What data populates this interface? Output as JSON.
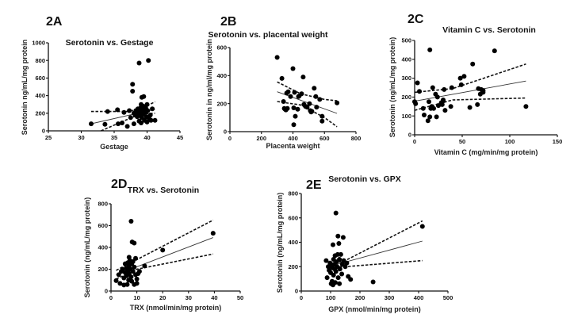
{
  "chart_data": [
    {
      "id": "2A",
      "type": "scatter",
      "panel_label": "2A",
      "title": "Serotonin vs. Gestage",
      "xlabel": "Gestage",
      "ylabel": "Serotonin ng/mL/mg protein",
      "xlim": [
        25,
        45
      ],
      "ylim": [
        0,
        1000
      ],
      "xticks": [
        25,
        30,
        35,
        40,
        45
      ],
      "yticks": [
        0,
        200,
        400,
        600,
        800,
        1000
      ],
      "grid": false,
      "points": [
        [
          31.5,
          80
        ],
        [
          33.6,
          75
        ],
        [
          34.0,
          220
        ],
        [
          35.5,
          240
        ],
        [
          35.6,
          80
        ],
        [
          36.2,
          90
        ],
        [
          36.5,
          210
        ],
        [
          37.0,
          50
        ],
        [
          37.3,
          230
        ],
        [
          37.5,
          150
        ],
        [
          37.8,
          530
        ],
        [
          37.8,
          450
        ],
        [
          38.0,
          80
        ],
        [
          38.0,
          200
        ],
        [
          38.2,
          180
        ],
        [
          38.3,
          230
        ],
        [
          38.5,
          160
        ],
        [
          38.6,
          250
        ],
        [
          38.7,
          200
        ],
        [
          38.8,
          110
        ],
        [
          38.8,
          770
        ],
        [
          38.9,
          220
        ],
        [
          39.0,
          180
        ],
        [
          39.0,
          260
        ],
        [
          39.1,
          90
        ],
        [
          39.1,
          300
        ],
        [
          39.2,
          380
        ],
        [
          39.2,
          150
        ],
        [
          39.3,
          230
        ],
        [
          39.4,
          280
        ],
        [
          39.4,
          190
        ],
        [
          39.5,
          390
        ],
        [
          39.5,
          240
        ],
        [
          39.6,
          120
        ],
        [
          39.7,
          210
        ],
        [
          39.8,
          260
        ],
        [
          39.9,
          160
        ],
        [
          40.0,
          300
        ],
        [
          40.0,
          100
        ],
        [
          40.1,
          230
        ],
        [
          40.2,
          800
        ],
        [
          40.3,
          140
        ],
        [
          40.5,
          180
        ],
        [
          40.6,
          120
        ],
        [
          40.8,
          250
        ],
        [
          41.2,
          120
        ]
      ],
      "fit_line": [
        [
          31.5,
          80
        ],
        [
          41.2,
          245
        ]
      ],
      "ci_upper": [
        [
          31.5,
          220
        ],
        [
          37.0,
          220
        ],
        [
          39.0,
          250
        ],
        [
          41.2,
          330
        ]
      ],
      "ci_lower": [
        [
          33.0,
          0
        ],
        [
          37.0,
          130
        ],
        [
          39.0,
          190
        ],
        [
          41.2,
          200
        ]
      ]
    },
    {
      "id": "2B",
      "type": "scatter",
      "panel_label": "2B",
      "title": "Serotonin vs. placental weight",
      "xlabel": "Placenta weight",
      "ylabel": "Serotonin in ng/ml/mg protein",
      "xlim": [
        0,
        800
      ],
      "ylim": [
        0,
        600
      ],
      "xticks": [
        0,
        200,
        400,
        600,
        800
      ],
      "yticks": [
        0,
        200,
        400,
        600
      ],
      "grid": false,
      "points": [
        [
          300,
          530
        ],
        [
          330,
          380
        ],
        [
          340,
          215
        ],
        [
          345,
          165
        ],
        [
          350,
          160
        ],
        [
          355,
          155
        ],
        [
          360,
          275
        ],
        [
          365,
          165
        ],
        [
          370,
          285
        ],
        [
          385,
          250
        ],
        [
          400,
          450
        ],
        [
          405,
          170
        ],
        [
          405,
          50
        ],
        [
          410,
          280
        ],
        [
          415,
          110
        ],
        [
          430,
          160
        ],
        [
          435,
          250
        ],
        [
          440,
          255
        ],
        [
          455,
          270
        ],
        [
          465,
          390
        ],
        [
          470,
          195
        ],
        [
          480,
          180
        ],
        [
          490,
          175
        ],
        [
          505,
          200
        ],
        [
          510,
          150
        ],
        [
          515,
          140
        ],
        [
          520,
          145
        ],
        [
          535,
          310
        ],
        [
          545,
          250
        ],
        [
          550,
          175
        ],
        [
          570,
          230
        ],
        [
          585,
          110
        ],
        [
          585,
          75
        ],
        [
          680,
          205
        ]
      ],
      "fit_line": [
        [
          300,
          285
        ],
        [
          680,
          130
        ]
      ],
      "ci_upper": [
        [
          300,
          355
        ],
        [
          450,
          270
        ],
        [
          600,
          230
        ],
        [
          680,
          220
        ]
      ],
      "ci_lower": [
        [
          300,
          215
        ],
        [
          450,
          190
        ],
        [
          600,
          100
        ],
        [
          680,
          35
        ]
      ]
    },
    {
      "id": "2C",
      "type": "scatter",
      "panel_label": "2C",
      "title": "Vitamin C vs. Serotonin",
      "xlabel": "Vitamin C (mg/min/mg protein)",
      "ylabel": "Serotonin (ng/mL/mg protein)",
      "xlim": [
        0,
        150
      ],
      "ylim": [
        0,
        500
      ],
      "xticks": [
        0,
        50,
        100,
        150
      ],
      "yticks": [
        0,
        100,
        200,
        300,
        400,
        500
      ],
      "grid": false,
      "points": [
        [
          0,
          175
        ],
        [
          1,
          165
        ],
        [
          3,
          275
        ],
        [
          5,
          230
        ],
        [
          9,
          140
        ],
        [
          10,
          105
        ],
        [
          14,
          75
        ],
        [
          15,
          175
        ],
        [
          16,
          450
        ],
        [
          16,
          95
        ],
        [
          17,
          140
        ],
        [
          18,
          150
        ],
        [
          19,
          250
        ],
        [
          20,
          140
        ],
        [
          22,
          215
        ],
        [
          23,
          95
        ],
        [
          24,
          200
        ],
        [
          25,
          155
        ],
        [
          28,
          170
        ],
        [
          29,
          160
        ],
        [
          30,
          185
        ],
        [
          30,
          180
        ],
        [
          31,
          240
        ],
        [
          32,
          130
        ],
        [
          38,
          150
        ],
        [
          39,
          250
        ],
        [
          48,
          300
        ],
        [
          49,
          265
        ],
        [
          52,
          310
        ],
        [
          58,
          145
        ],
        [
          61,
          375
        ],
        [
          66,
          160
        ],
        [
          67,
          245
        ],
        [
          69,
          215
        ],
        [
          70,
          240
        ],
        [
          72,
          225
        ],
        [
          72,
          235
        ],
        [
          84,
          445
        ],
        [
          117,
          150
        ]
      ],
      "fit_line": [
        [
          0,
          178
        ],
        [
          117,
          285
        ]
      ],
      "ci_upper": [
        [
          0,
          225
        ],
        [
          40,
          245
        ],
        [
          117,
          375
        ]
      ],
      "ci_lower": [
        [
          0,
          130
        ],
        [
          40,
          185
        ],
        [
          117,
          195
        ]
      ]
    },
    {
      "id": "2D",
      "type": "scatter",
      "panel_label": "2D",
      "title": "TRX vs. Serotonin",
      "xlabel": "TRX (nmol/min/mg protein)",
      "ylabel": "Serotonin (ng/mL/mg protein)",
      "xlim": [
        0,
        50
      ],
      "ylim": [
        0,
        800
      ],
      "xticks": [
        0,
        10,
        20,
        30,
        40,
        50
      ],
      "yticks": [
        0,
        200,
        400,
        600,
        800
      ],
      "grid": false,
      "points": [
        [
          2,
          95
        ],
        [
          3,
          150
        ],
        [
          3.5,
          70
        ],
        [
          4,
          180
        ],
        [
          4.5,
          200
        ],
        [
          5,
          55
        ],
        [
          5,
          120
        ],
        [
          5.5,
          250
        ],
        [
          5.5,
          170
        ],
        [
          6,
          210
        ],
        [
          6,
          140
        ],
        [
          6.3,
          60
        ],
        [
          6.5,
          260
        ],
        [
          6.5,
          190
        ],
        [
          6.8,
          100
        ],
        [
          7,
          310
        ],
        [
          7,
          230
        ],
        [
          7,
          160
        ],
        [
          7.3,
          280
        ],
        [
          7.5,
          200
        ],
        [
          7.8,
          640
        ],
        [
          7.8,
          130
        ],
        [
          8,
          250
        ],
        [
          8,
          90
        ],
        [
          8.2,
          450
        ],
        [
          8.5,
          180
        ],
        [
          8.5,
          270
        ],
        [
          9,
          440
        ],
        [
          9,
          220
        ],
        [
          9,
          60
        ],
        [
          9.5,
          300
        ],
        [
          9.5,
          150
        ],
        [
          10,
          110
        ],
        [
          10,
          70
        ],
        [
          10.5,
          160
        ],
        [
          11,
          180
        ],
        [
          13,
          230
        ],
        [
          20,
          375
        ],
        [
          39.5,
          530
        ]
      ],
      "fit_line": [
        [
          2,
          150
        ],
        [
          39.5,
          490
        ]
      ],
      "ci_upper": [
        [
          2,
          190
        ],
        [
          39.5,
          650
        ]
      ],
      "ci_lower": [
        [
          2,
          110
        ],
        [
          10,
          200
        ],
        [
          39.5,
          340
        ]
      ]
    },
    {
      "id": "2E",
      "type": "scatter",
      "panel_label": "2E",
      "title": "Serotonin vs. GPX",
      "xlabel": "GPX (nmol/min/mg protein)",
      "ylabel": "Serotonin (ng/mL/mg protein)",
      "xlim": [
        0,
        500
      ],
      "ylim": [
        0,
        800
      ],
      "xticks": [
        0,
        100,
        200,
        300,
        400,
        500
      ],
      "yticks": [
        0,
        200,
        400,
        600,
        800
      ],
      "grid": false,
      "points": [
        [
          85,
          250
        ],
        [
          88,
          110
        ],
        [
          92,
          200
        ],
        [
          95,
          170
        ],
        [
          98,
          230
        ],
        [
          100,
          150
        ],
        [
          102,
          60
        ],
        [
          104,
          210
        ],
        [
          105,
          80
        ],
        [
          106,
          190
        ],
        [
          108,
          50
        ],
        [
          108,
          380
        ],
        [
          110,
          260
        ],
        [
          110,
          130
        ],
        [
          112,
          220
        ],
        [
          114,
          180
        ],
        [
          115,
          290
        ],
        [
          116,
          70
        ],
        [
          118,
          640
        ],
        [
          118,
          160
        ],
        [
          120,
          240
        ],
        [
          122,
          200
        ],
        [
          124,
          300
        ],
        [
          125,
          450
        ],
        [
          126,
          110
        ],
        [
          128,
          390
        ],
        [
          130,
          260
        ],
        [
          130,
          60
        ],
        [
          132,
          180
        ],
        [
          135,
          300
        ],
        [
          138,
          140
        ],
        [
          140,
          220
        ],
        [
          143,
          440
        ],
        [
          145,
          250
        ],
        [
          150,
          200
        ],
        [
          155,
          230
        ],
        [
          160,
          120
        ],
        [
          168,
          95
        ],
        [
          245,
          75
        ],
        [
          413,
          530
        ]
      ],
      "fit_line": [
        [
          100,
          205
        ],
        [
          413,
          410
        ]
      ],
      "ci_upper": [
        [
          100,
          215
        ],
        [
          150,
          250
        ],
        [
          413,
          575
        ]
      ],
      "ci_lower": [
        [
          100,
          200
        ],
        [
          150,
          200
        ],
        [
          413,
          250
        ]
      ]
    }
  ]
}
